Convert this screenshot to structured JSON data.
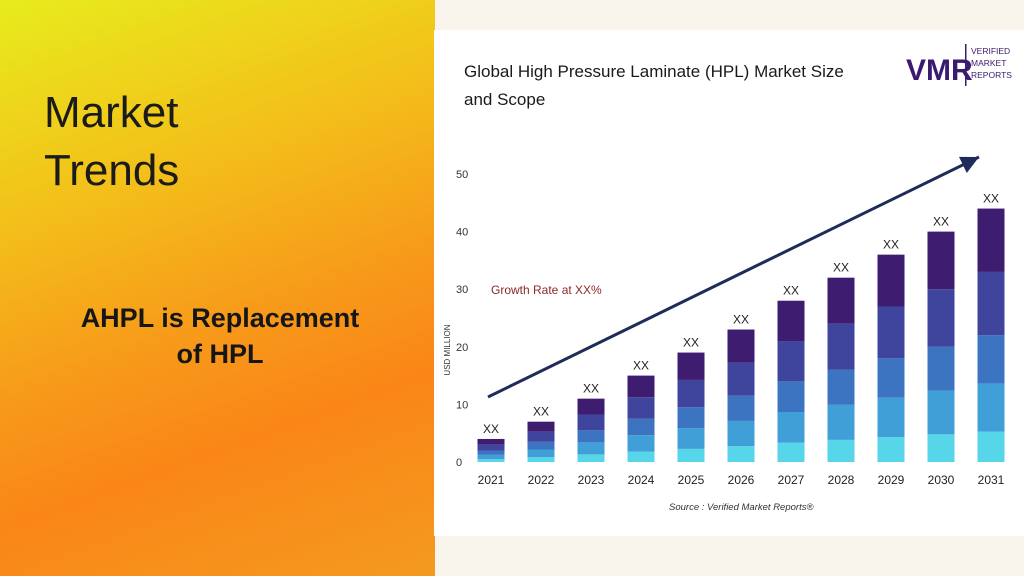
{
  "slide": {
    "title": "Market\nTrends",
    "subtitle": "AHPL is Replacement\nof HPL"
  },
  "logo": {
    "mark": "VMR",
    "text_lines": [
      "VERIFIED",
      "MARKET",
      "REPORTS"
    ],
    "color": "#3a1b6e"
  },
  "chart_data": {
    "type": "bar",
    "title": "Global High Pressure Laminate (HPL) Market Size and Scope",
    "title_lines": [
      "Global High Pressure Laminate (HPL) Market Size",
      "and Scope"
    ],
    "ylabel": "USD MILLION",
    "xlabel": "",
    "categories": [
      "2021",
      "2022",
      "2023",
      "2024",
      "2025",
      "2026",
      "2027",
      "2028",
      "2029",
      "2030",
      "2031"
    ],
    "values": [
      4,
      7,
      11,
      15,
      19,
      23,
      28,
      32,
      36,
      40,
      44
    ],
    "data_labels": [
      "XX",
      "XX",
      "XX",
      "XX",
      "XX",
      "XX",
      "XX",
      "XX",
      "XX",
      "XX",
      "XX"
    ],
    "segment_fractions": [
      0.12,
      0.19,
      0.19,
      0.25,
      0.25
    ],
    "segment_colors": [
      "#57d6ea",
      "#3f9fd6",
      "#3c74c1",
      "#3f449c",
      "#3e1c6f"
    ],
    "ylim": [
      0,
      50
    ],
    "yticks": [
      0,
      10,
      20,
      30,
      40,
      50
    ],
    "annotation": "Growth Rate at XX%",
    "annotation_color": "#8b2a2a",
    "trend_arrow_color": "#1f2c5a",
    "source": "Source : Verified Market Reports®",
    "grid": false,
    "legend": "none"
  }
}
